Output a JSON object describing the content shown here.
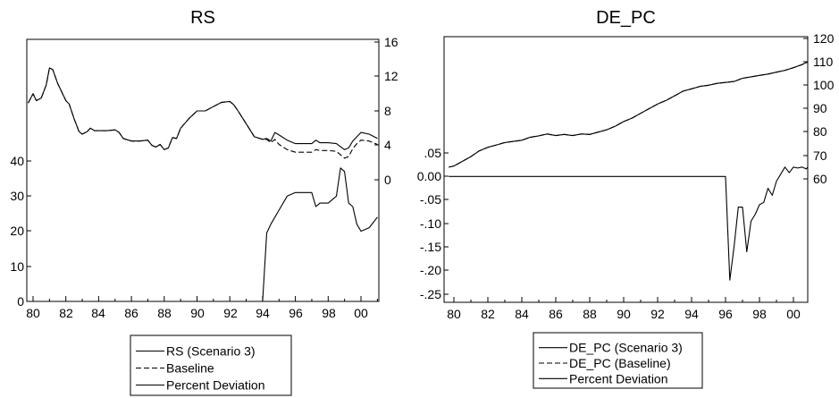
{
  "chart_data": [
    {
      "type": "line",
      "title": "RS",
      "x_tick_labels": [
        "80",
        "82",
        "84",
        "86",
        "88",
        "90",
        "92",
        "94",
        "96",
        "98",
        "00"
      ],
      "left_axis": {
        "ticks": [
          "0",
          "10",
          "20",
          "30",
          "40"
        ],
        "range": [
          0,
          50
        ]
      },
      "right_axis": {
        "ticks": [
          "0",
          "4",
          "8",
          "12",
          "16"
        ],
        "range": [
          -2,
          16
        ]
      },
      "legend": {
        "position": "bottom",
        "entries": [
          {
            "label": "RS (Scenario 3)",
            "style": "solid"
          },
          {
            "label": "Baseline",
            "style": "dashed"
          },
          {
            "label": "Percent Deviation",
            "style": "solid"
          }
        ]
      },
      "series": [
        {
          "name": "RS (Scenario 3)",
          "axis": "right",
          "style": "solid",
          "x": [
            1979.7,
            1980.0,
            1980.2,
            1980.5,
            1980.8,
            1981.0,
            1981.2,
            1981.5,
            1981.75,
            1982.0,
            1982.2,
            1982.5,
            1982.8,
            1983.0,
            1983.3,
            1983.5,
            1983.75,
            1984.0,
            1984.5,
            1985.0,
            1985.25,
            1985.5,
            1986.0,
            1986.5,
            1987.0,
            1987.25,
            1987.5,
            1987.75,
            1988.0,
            1988.25,
            1988.5,
            1988.75,
            1989.0,
            1989.5,
            1990.0,
            1990.5,
            1991.0,
            1991.5,
            1992.0,
            1992.25,
            1992.5,
            1993.0,
            1993.5,
            1994.0,
            1994.25,
            1994.5,
            1994.75,
            1995.0,
            1995.5,
            1996.0,
            1996.5,
            1997.0,
            1997.25,
            1997.5,
            1998.0,
            1998.5,
            1999.0,
            1999.25,
            1999.5,
            1999.75,
            2000.0,
            2000.5,
            2001.0
          ],
          "y": [
            8.9,
            10.0,
            9.2,
            9.5,
            11.0,
            13.0,
            12.8,
            11.2,
            10.2,
            9.2,
            8.8,
            7.1,
            5.6,
            5.3,
            5.6,
            6.0,
            5.7,
            5.7,
            5.7,
            5.8,
            5.5,
            4.8,
            4.5,
            4.5,
            4.6,
            4.0,
            3.8,
            4.1,
            3.5,
            3.7,
            4.9,
            4.8,
            6.0,
            7.1,
            8.0,
            8.0,
            8.5,
            9.0,
            9.1,
            8.7,
            8.0,
            6.5,
            5.0,
            4.7,
            4.8,
            4.5,
            5.5,
            5.2,
            4.6,
            4.2,
            4.2,
            4.2,
            4.6,
            4.3,
            4.3,
            4.2,
            3.5,
            3.7,
            4.5,
            5.0,
            5.5,
            5.3,
            4.8
          ]
        },
        {
          "name": "Baseline",
          "axis": "right",
          "style": "dashed",
          "x": [
            1979.7,
            1980.0,
            1980.2,
            1980.5,
            1980.8,
            1981.0,
            1981.2,
            1981.5,
            1981.75,
            1982.0,
            1982.2,
            1982.5,
            1982.8,
            1983.0,
            1983.3,
            1983.5,
            1983.75,
            1984.0,
            1984.5,
            1985.0,
            1985.25,
            1985.5,
            1986.0,
            1986.5,
            1987.0,
            1987.25,
            1987.5,
            1987.75,
            1988.0,
            1988.25,
            1988.5,
            1988.75,
            1989.0,
            1989.5,
            1990.0,
            1990.5,
            1991.0,
            1991.5,
            1992.0,
            1992.25,
            1992.5,
            1993.0,
            1993.5,
            1994.0,
            1994.25,
            1994.5,
            1994.75,
            1995.0,
            1995.5,
            1996.0,
            1996.5,
            1997.0,
            1997.25,
            1997.5,
            1998.0,
            1998.5,
            1999.0,
            1999.25,
            1999.5,
            1999.75,
            2000.0,
            2000.5,
            2001.0
          ],
          "y": [
            8.9,
            10.0,
            9.2,
            9.5,
            11.0,
            13.0,
            12.8,
            11.2,
            10.2,
            9.2,
            8.8,
            7.1,
            5.6,
            5.3,
            5.6,
            6.0,
            5.7,
            5.7,
            5.7,
            5.8,
            5.5,
            4.8,
            4.5,
            4.5,
            4.6,
            4.0,
            3.8,
            4.1,
            3.5,
            3.7,
            4.9,
            4.8,
            6.0,
            7.1,
            8.0,
            8.0,
            8.5,
            9.0,
            9.1,
            8.7,
            8.0,
            6.5,
            5.0,
            4.7,
            4.7,
            4.3,
            4.7,
            4.1,
            3.5,
            3.2,
            3.2,
            3.2,
            3.5,
            3.4,
            3.4,
            3.3,
            2.5,
            2.7,
            3.6,
            4.2,
            4.6,
            4.5,
            4.1
          ]
        },
        {
          "name": "Percent Deviation",
          "axis": "left",
          "style": "solid",
          "x": [
            1979.7,
            1994.0,
            1994.25,
            1994.5,
            1995.0,
            1995.5,
            1996.0,
            1996.5,
            1997.0,
            1997.25,
            1997.5,
            1998.0,
            1998.5,
            1998.75,
            1999.0,
            1999.25,
            1999.5,
            1999.75,
            2000.0,
            2000.5,
            2001.0
          ],
          "y": [
            0,
            0,
            19.5,
            22,
            26,
            30,
            31,
            31,
            31,
            27,
            28,
            28,
            30,
            38,
            37,
            28,
            27,
            22,
            20,
            21,
            24
          ]
        }
      ]
    },
    {
      "type": "line",
      "title": "DE_PC",
      "x_tick_labels": [
        "80",
        "82",
        "84",
        "86",
        "88",
        "90",
        "92",
        "94",
        "96",
        "98",
        "00"
      ],
      "left_axis": {
        "ticks": [
          ".05",
          "0.00",
          "-.05",
          "-.10",
          "-.15",
          "-.20",
          "-.25"
        ],
        "range": [
          -0.25,
          0.3
        ]
      },
      "right_axis": {
        "ticks": [
          "60",
          "70",
          "80",
          "90",
          "100",
          "110",
          "120"
        ],
        "range": [
          25,
          120
        ]
      },
      "legend": {
        "position": "bottom",
        "entries": [
          {
            "label": "DE_PC (Scenario 3)",
            "style": "solid"
          },
          {
            "label": "DE_PC (Baseline)",
            "style": "dashed"
          },
          {
            "label": "Percent Deviation",
            "style": "solid"
          }
        ]
      },
      "series": [
        {
          "name": "DE_PC (Scenario 3)",
          "axis": "right",
          "style": "solid",
          "x": [
            1979.7,
            1980.0,
            1980.5,
            1981.0,
            1981.5,
            1982.0,
            1982.5,
            1983.0,
            1983.5,
            1984.0,
            1984.5,
            1985.0,
            1985.5,
            1986.0,
            1986.5,
            1987.0,
            1987.5,
            1988.0,
            1988.5,
            1989.0,
            1989.5,
            1990.0,
            1990.5,
            1991.0,
            1991.5,
            1992.0,
            1992.5,
            1993.0,
            1993.5,
            1994.0,
            1994.5,
            1995.0,
            1995.5,
            1996.0,
            1996.5,
            1997.0,
            1997.5,
            1998.0,
            1998.5,
            1999.0,
            1999.5,
            2000.0,
            2000.5,
            2001.0
          ],
          "y": [
            65,
            65.5,
            67.5,
            69.5,
            72,
            73.5,
            74.5,
            75.5,
            76,
            76.5,
            77.8,
            78.4,
            79.2,
            78.5,
            79.0,
            78.5,
            79.2,
            79.0,
            80.0,
            81.0,
            82.5,
            84.5,
            86.0,
            88.0,
            90.0,
            92.0,
            93.5,
            95.5,
            97.5,
            98.5,
            99.5,
            100.0,
            100.8,
            101.2,
            101.6,
            103.0,
            103.6,
            104.2,
            104.8,
            105.6,
            106.4,
            107.5,
            108.8,
            110.0
          ]
        },
        {
          "name": "DE_PC (Baseline)",
          "axis": "right",
          "style": "dashed",
          "x": [
            1979.7,
            1980.0,
            1980.5,
            1981.0,
            1981.5,
            1982.0,
            1982.5,
            1983.0,
            1983.5,
            1984.0,
            1984.5,
            1985.0,
            1985.5,
            1986.0,
            1986.5,
            1987.0,
            1987.5,
            1988.0,
            1988.5,
            1989.0,
            1989.5,
            1990.0,
            1990.5,
            1991.0,
            1991.5,
            1992.0,
            1992.5,
            1993.0,
            1993.5,
            1994.0,
            1994.5,
            1995.0,
            1995.5,
            1996.0,
            1996.5,
            1997.0,
            1997.5,
            1998.0,
            1998.5,
            1999.0,
            1999.5,
            2000.0,
            2000.5,
            2001.0
          ],
          "y": [
            65,
            65.5,
            67.5,
            69.5,
            72,
            73.5,
            74.5,
            75.5,
            76,
            76.5,
            77.8,
            78.4,
            79.2,
            78.5,
            79.0,
            78.5,
            79.2,
            79.0,
            80.0,
            81.0,
            82.5,
            84.5,
            86.0,
            88.0,
            90.0,
            92.0,
            93.5,
            95.5,
            97.5,
            98.5,
            99.5,
            100.0,
            100.8,
            101.2,
            101.6,
            103.0,
            103.6,
            104.2,
            104.8,
            105.6,
            106.4,
            107.5,
            108.8,
            110.0
          ]
        },
        {
          "name": "Percent Deviation",
          "axis": "left",
          "style": "solid",
          "x": [
            1979.7,
            1996.0,
            1996.25,
            1996.5,
            1996.75,
            1997.0,
            1997.25,
            1997.5,
            1997.75,
            1998.0,
            1998.25,
            1998.5,
            1998.75,
            1999.0,
            1999.25,
            1999.5,
            1999.75,
            2000.0,
            2000.25,
            2000.5,
            2000.75,
            2001.0
          ],
          "y": [
            0,
            0,
            -0.22,
            -0.15,
            -0.065,
            -0.065,
            -0.16,
            -0.095,
            -0.08,
            -0.06,
            -0.055,
            -0.025,
            -0.04,
            -0.01,
            0.005,
            0.02,
            0.008,
            0.02,
            0.018,
            0.02,
            0.016,
            0.02
          ]
        }
      ]
    }
  ]
}
